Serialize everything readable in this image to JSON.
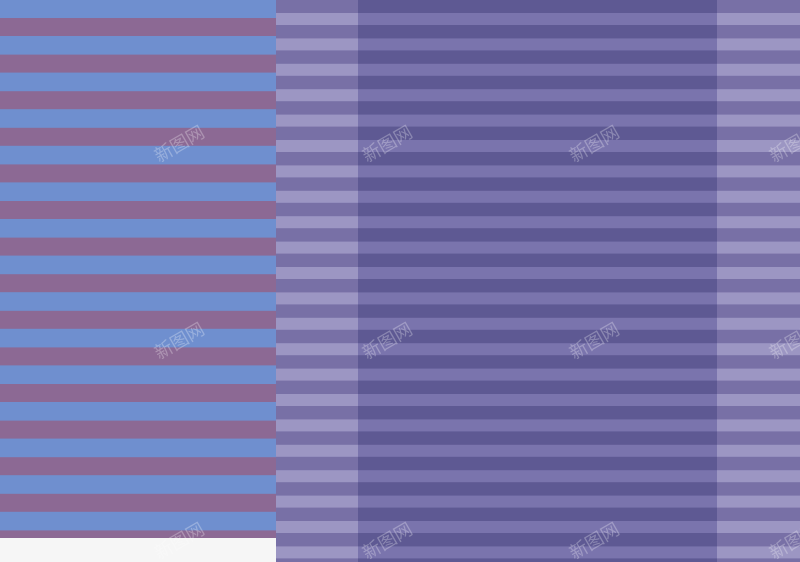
{
  "watermark": "新图网"
}
